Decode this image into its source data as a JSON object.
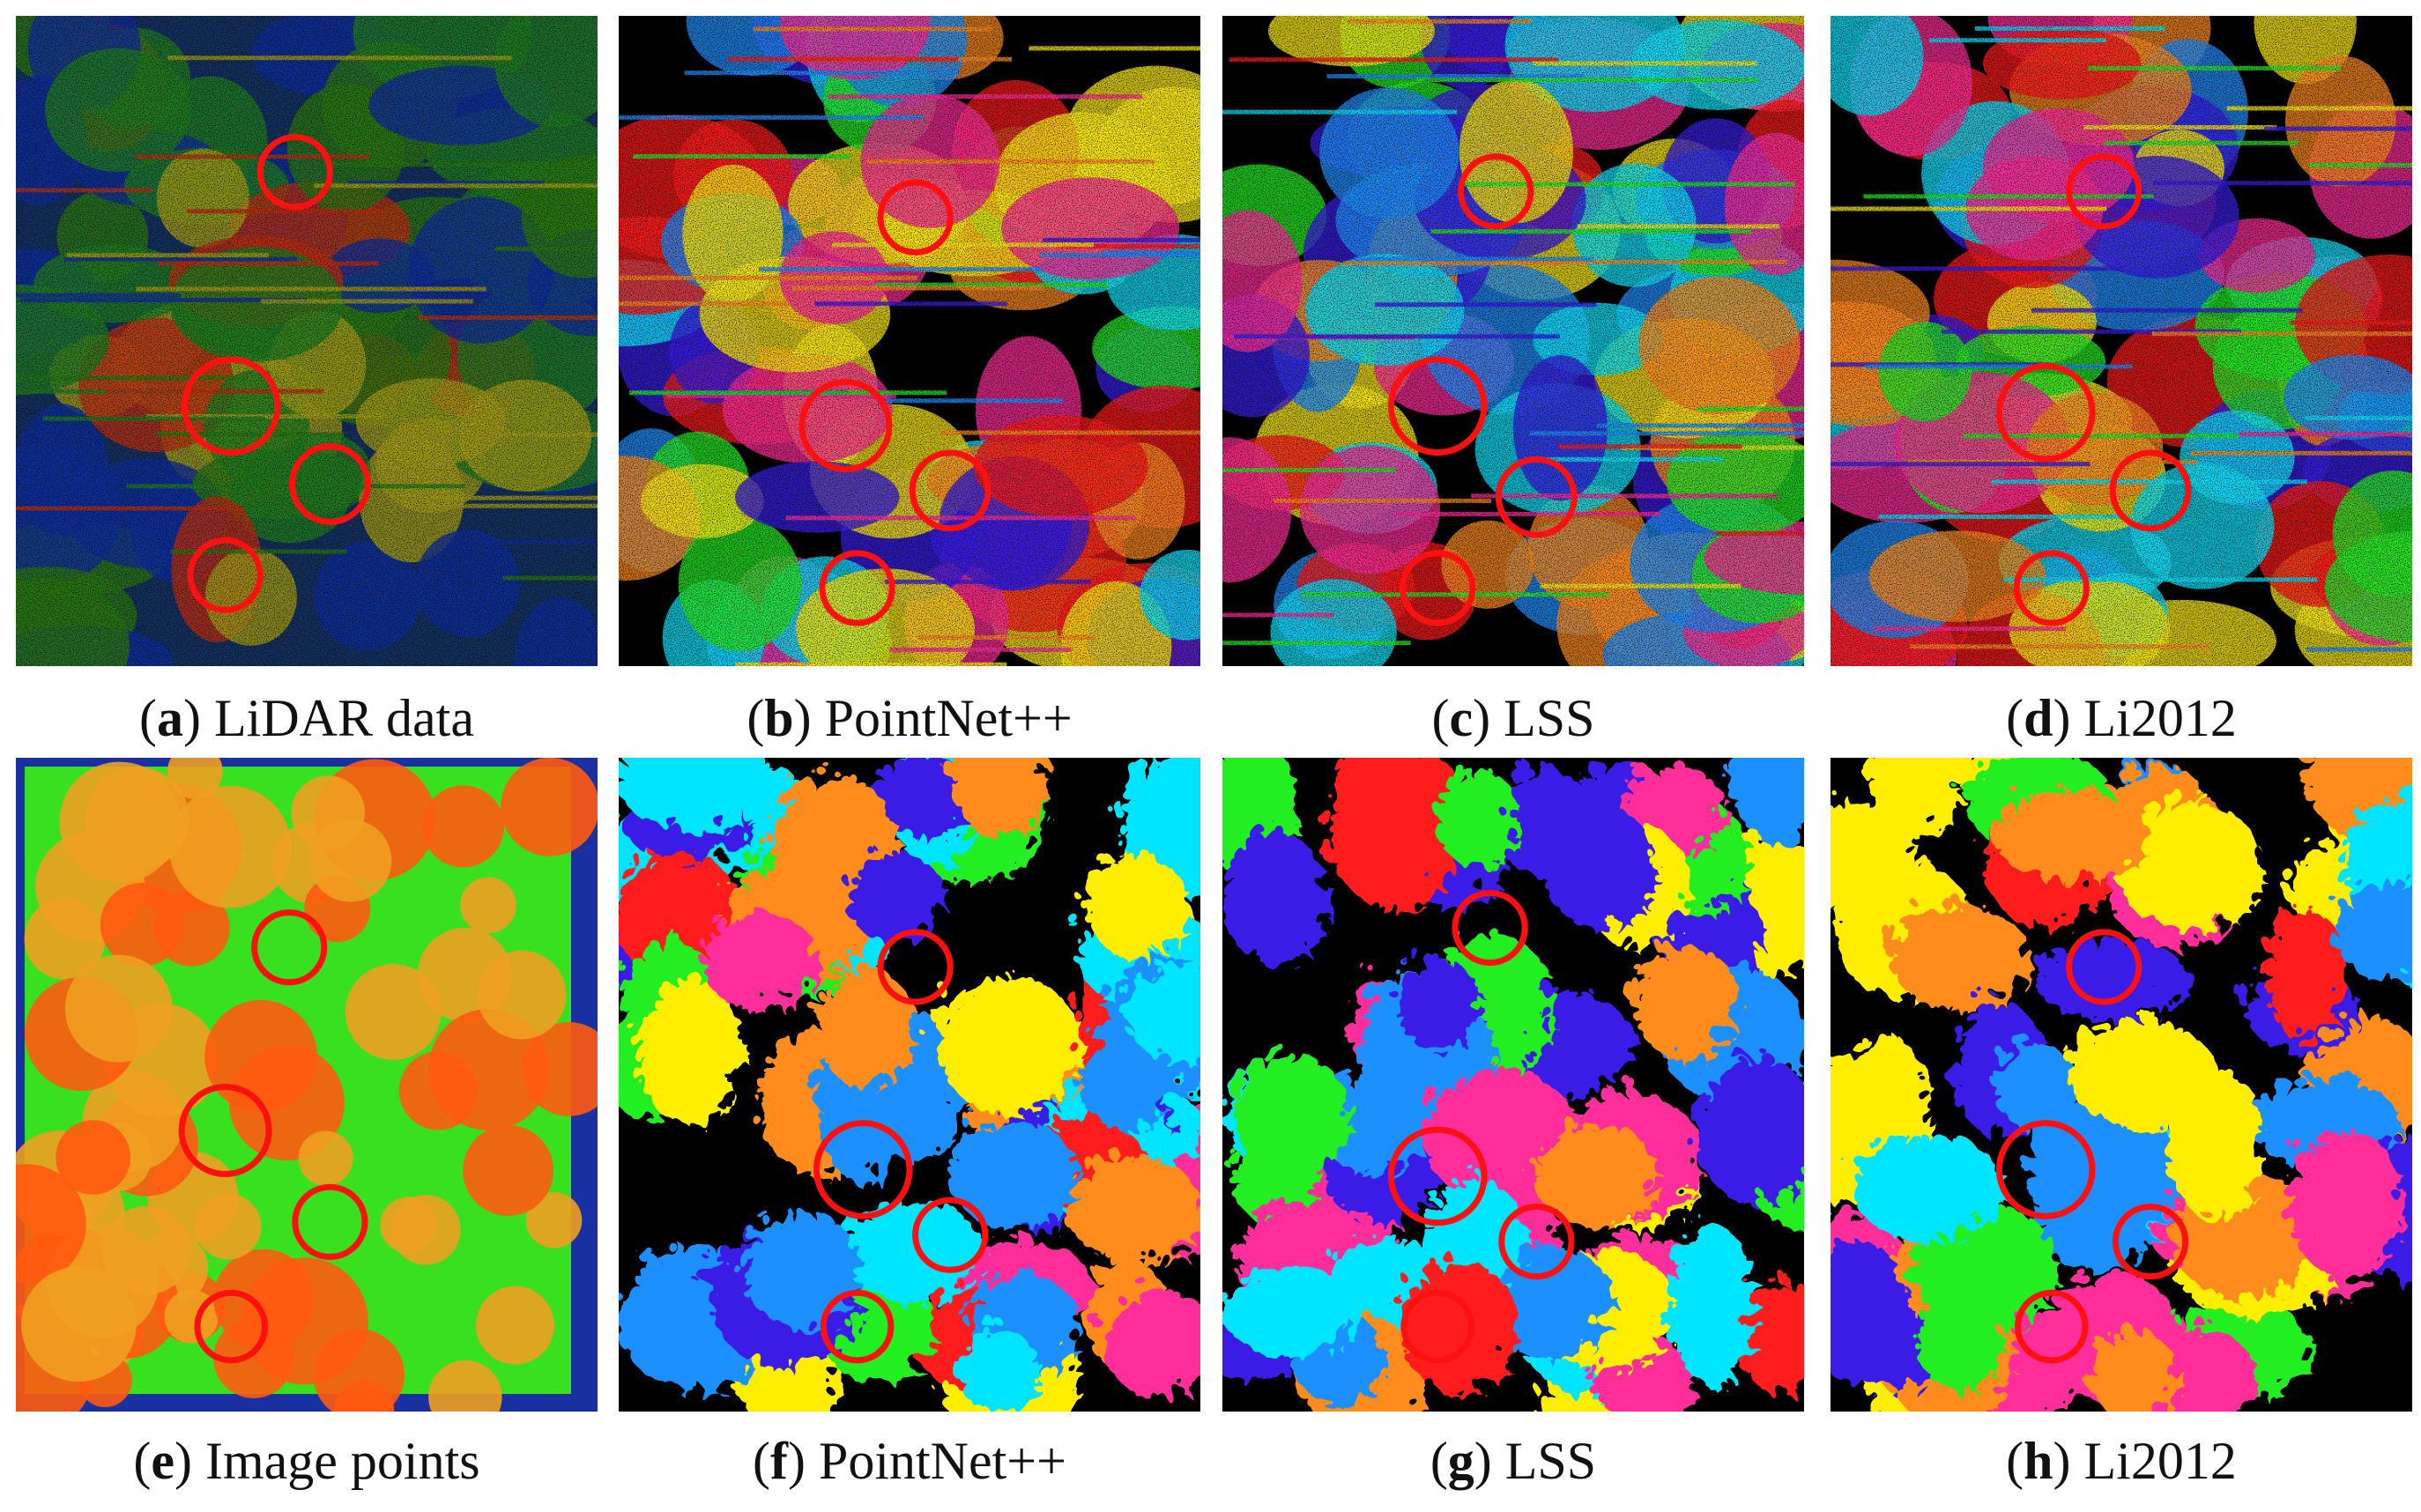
{
  "panels": [
    {
      "open": "(",
      "letter": "a",
      "rest": ") LiDAR data"
    },
    {
      "open": "(",
      "letter": "b",
      "rest": ") PointNet++"
    },
    {
      "open": "(",
      "letter": "c",
      "rest": ") LSS"
    },
    {
      "open": "(",
      "letter": "d",
      "rest": ") Li2012"
    },
    {
      "open": "(",
      "letter": "e",
      "rest": ") Image points"
    },
    {
      "open": "(",
      "letter": "f",
      "rest": ") PointNet++"
    },
    {
      "open": "(",
      "letter": "g",
      "rest": ") LSS"
    },
    {
      "open": "(",
      "letter": "h",
      "rest": ") Li2012"
    }
  ]
}
